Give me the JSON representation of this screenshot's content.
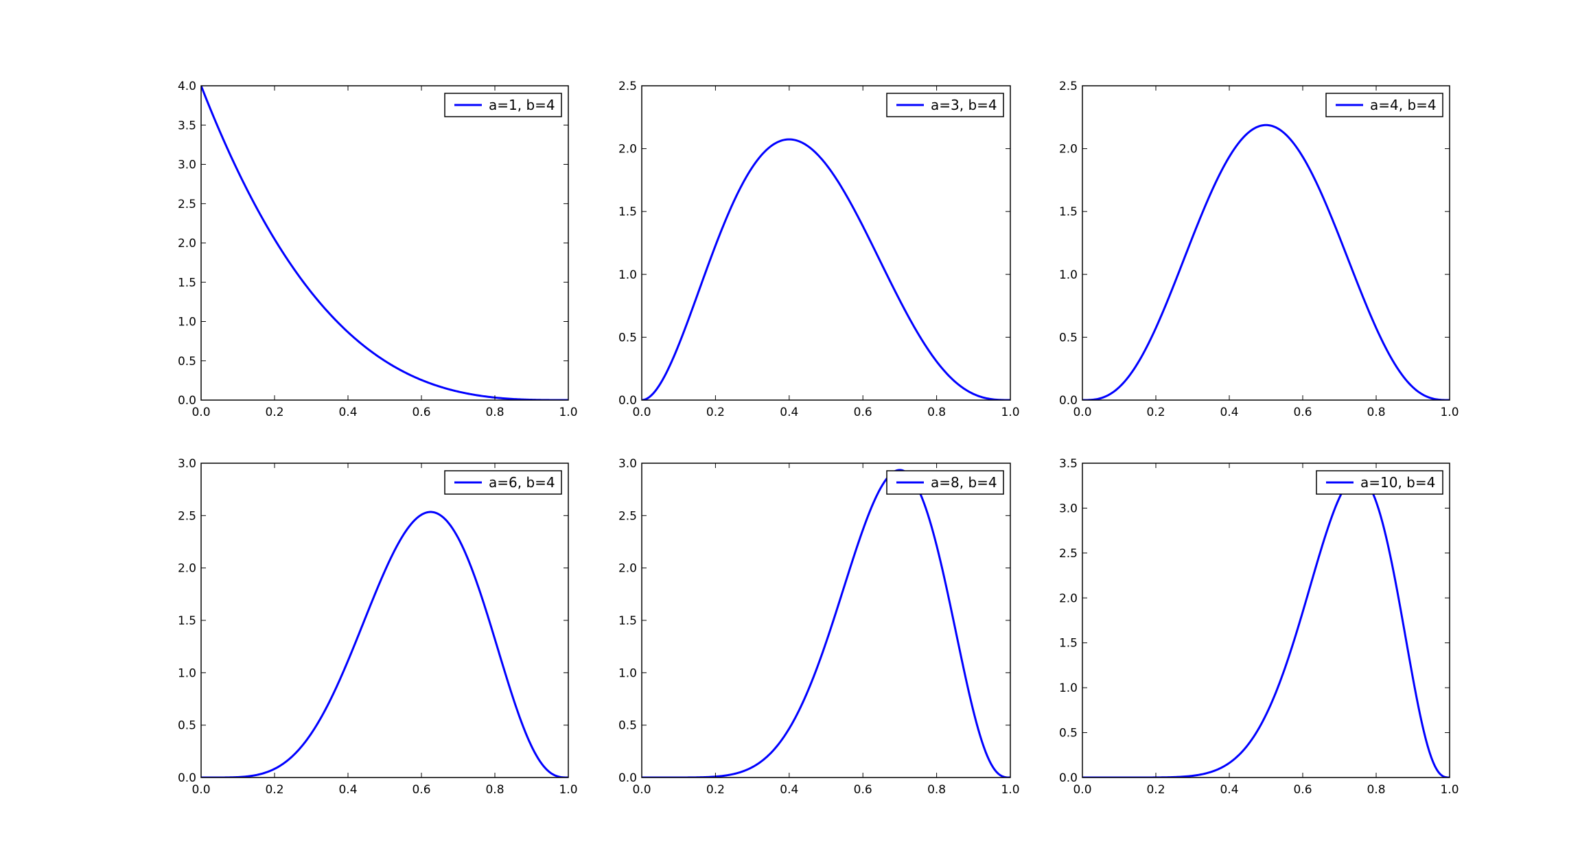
{
  "chart_data": [
    {
      "type": "line",
      "series": [
        {
          "name": "a=1, b=4",
          "color": "#0000ff",
          "a": 1,
          "b": 4,
          "x": [
            0.0,
            0.1,
            0.2,
            0.3,
            0.4,
            0.5,
            0.6,
            0.7,
            0.8,
            0.9,
            1.0
          ],
          "y": [
            4.0,
            2.916,
            2.048,
            1.372,
            0.864,
            0.5,
            0.256,
            0.108,
            0.032,
            0.004,
            0.0
          ]
        }
      ],
      "xlim": [
        0,
        1
      ],
      "ylim": [
        0,
        4
      ],
      "xticks": [
        "0.0",
        "0.2",
        "0.4",
        "0.6",
        "0.8",
        "1.0"
      ],
      "yticks": [
        "0.0",
        "0.5",
        "1.0",
        "1.5",
        "2.0",
        "2.5",
        "3.0",
        "3.5",
        "4.0"
      ],
      "legend": "top-right"
    },
    {
      "type": "line",
      "series": [
        {
          "name": "a=3, b=4",
          "color": "#0000ff",
          "a": 3,
          "b": 4,
          "x": [
            0.0,
            0.1,
            0.2,
            0.3,
            0.4,
            0.5,
            0.6,
            0.7,
            0.8,
            0.9,
            1.0
          ],
          "y": [
            0.0,
            0.437,
            1.229,
            1.801,
            2.074,
            1.875,
            1.382,
            0.794,
            0.307,
            0.049,
            0.0
          ]
        }
      ],
      "xlim": [
        0,
        1
      ],
      "ylim": [
        0,
        2.5
      ],
      "xticks": [
        "0.0",
        "0.2",
        "0.4",
        "0.6",
        "0.8",
        "1.0"
      ],
      "yticks": [
        "0.0",
        "0.5",
        "1.0",
        "1.5",
        "2.0",
        "2.5"
      ],
      "legend": "top-right"
    },
    {
      "type": "line",
      "series": [
        {
          "name": "a=4, b=4",
          "color": "#0000ff",
          "a": 4,
          "b": 4,
          "x": [
            0.0,
            0.1,
            0.2,
            0.3,
            0.4,
            0.5,
            0.6,
            0.7,
            0.8,
            0.9,
            1.0
          ],
          "y": [
            0.0,
            0.102,
            0.573,
            1.261,
            1.769,
            2.188,
            1.769,
            1.261,
            0.573,
            0.102,
            0.0
          ]
        }
      ],
      "xlim": [
        0,
        1
      ],
      "ylim": [
        0,
        2.5
      ],
      "xticks": [
        "0.0",
        "0.2",
        "0.4",
        "0.6",
        "0.8",
        "1.0"
      ],
      "yticks": [
        "0.0",
        "0.5",
        "1.0",
        "1.5",
        "2.0",
        "2.5"
      ],
      "legend": "top-right"
    },
    {
      "type": "line",
      "series": [
        {
          "name": "a=6, b=4",
          "color": "#0000ff",
          "a": 6,
          "b": 4,
          "x": [
            0.0,
            0.1,
            0.2,
            0.3,
            0.4,
            0.5,
            0.6,
            0.7,
            0.8,
            0.9,
            1.0
          ],
          "y": [
            0.0,
            0.0,
            0.103,
            0.562,
            1.393,
            2.051,
            2.534,
            2.195,
            1.174,
            0.219,
            0.0
          ]
        }
      ],
      "xlim": [
        0,
        1
      ],
      "ylim": [
        0,
        3
      ],
      "xticks": [
        "0.0",
        "0.2",
        "0.4",
        "0.6",
        "0.8",
        "1.0"
      ],
      "yticks": [
        "0.0",
        "0.5",
        "1.0",
        "1.5",
        "2.0",
        "2.5",
        "3.0"
      ],
      "legend": "top-right"
    },
    {
      "type": "line",
      "series": [
        {
          "name": "a=8, b=4",
          "color": "#0000ff",
          "a": 8,
          "b": 4,
          "x": [
            0.0,
            0.1,
            0.2,
            0.3,
            0.4,
            0.5,
            0.6,
            0.7,
            0.8,
            0.9,
            1.0
          ],
          "y": [
            0.0,
            0.0,
            0.012,
            0.124,
            0.573,
            1.289,
            2.275,
            2.92,
            2.214,
            0.542,
            0.0
          ]
        }
      ],
      "xlim": [
        0,
        1
      ],
      "ylim": [
        0,
        3
      ],
      "xticks": [
        "0.0",
        "0.2",
        "0.4",
        "0.6",
        "0.8",
        "1.0"
      ],
      "yticks": [
        "0.0",
        "0.5",
        "1.0",
        "1.5",
        "2.0",
        "2.5",
        "3.0"
      ],
      "legend": "top-right"
    },
    {
      "type": "line",
      "series": [
        {
          "name": "a=10, b=4",
          "color": "#0000ff",
          "a": 10,
          "b": 4,
          "x": [
            0.0,
            0.1,
            0.2,
            0.3,
            0.4,
            0.5,
            0.6,
            0.7,
            0.8,
            0.9,
            1.0
          ],
          "y": [
            0.0,
            0.0,
            0.001,
            0.025,
            0.218,
            0.698,
            1.712,
            2.861,
            3.23,
            1.125,
            0.0
          ]
        }
      ],
      "xlim": [
        0,
        1
      ],
      "ylim": [
        0,
        3.5
      ],
      "xticks": [
        "0.0",
        "0.2",
        "0.4",
        "0.6",
        "0.8",
        "1.0"
      ],
      "yticks": [
        "0.0",
        "0.5",
        "1.0",
        "1.5",
        "2.0",
        "2.5",
        "3.0",
        "3.5"
      ],
      "legend": "top-right"
    }
  ]
}
